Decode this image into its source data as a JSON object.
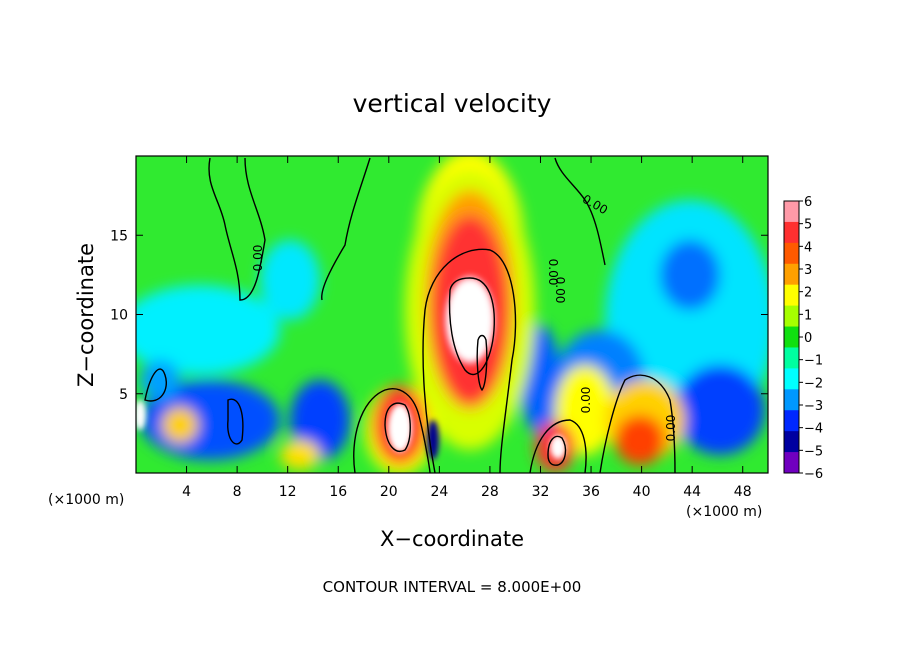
{
  "chart_data": {
    "type": "heatmap",
    "title": "vertical velocity",
    "xlabel": "X−coordinate",
    "ylabel": "Z−coordinate",
    "x_unit_left": "(×1000 m)",
    "x_unit_right": "(×1000 m)",
    "xlim": [
      0,
      50
    ],
    "ylim": [
      0,
      20
    ],
    "x_ticks": [
      "4",
      "8",
      "12",
      "16",
      "20",
      "24",
      "28",
      "32",
      "36",
      "40",
      "44",
      "48"
    ],
    "y_ticks": [
      "5",
      "10",
      "15"
    ],
    "y_tick_values": [
      5,
      10,
      15
    ],
    "x_tick_values": [
      4,
      8,
      12,
      16,
      20,
      24,
      28,
      32,
      36,
      40,
      44,
      48
    ],
    "colorbar_labels": [
      "6",
      "5",
      "4",
      "3",
      "2",
      "1",
      "0",
      "−1",
      "−2",
      "−3",
      "−4",
      "−5",
      "−6"
    ],
    "colorbar_values": [
      6,
      5,
      4,
      3,
      2,
      1,
      0,
      -1,
      -2,
      -3,
      -4,
      -5,
      -6
    ],
    "colorbar_colors": [
      "#ff9aa8",
      "#ff3030",
      "#ff5a00",
      "#ffa000",
      "#ffff00",
      "#a6ff00",
      "#10e010",
      "#00ffa0",
      "#00ffff",
      "#0098ff",
      "#0028ff",
      "#0000a0",
      "#7000c0"
    ],
    "contour_labels": [
      "0.00",
      "0.00",
      "0.00",
      "0.00",
      "0.00",
      "0.00"
    ],
    "contour_interval_text": "CONTOUR INTERVAL = 8.000E+00",
    "features": [
      {
        "x": 27,
        "z": 9,
        "value": 14
      },
      {
        "x": 21,
        "z": 3,
        "value": 9
      },
      {
        "x": 33.5,
        "z": 2,
        "value": 7
      },
      {
        "x": 40,
        "z": 2.5,
        "value": 4.5
      },
      {
        "x": 27,
        "z": 15.5,
        "value": 4
      },
      {
        "x": 24,
        "z": 2,
        "value": -7
      },
      {
        "x": 43,
        "z": 12,
        "value": -4
      },
      {
        "x": 45,
        "z": 4,
        "value": -4
      },
      {
        "x": 12,
        "z": 2.5,
        "value": -4
      },
      {
        "x": 5,
        "z": 5,
        "value": -4
      }
    ]
  }
}
